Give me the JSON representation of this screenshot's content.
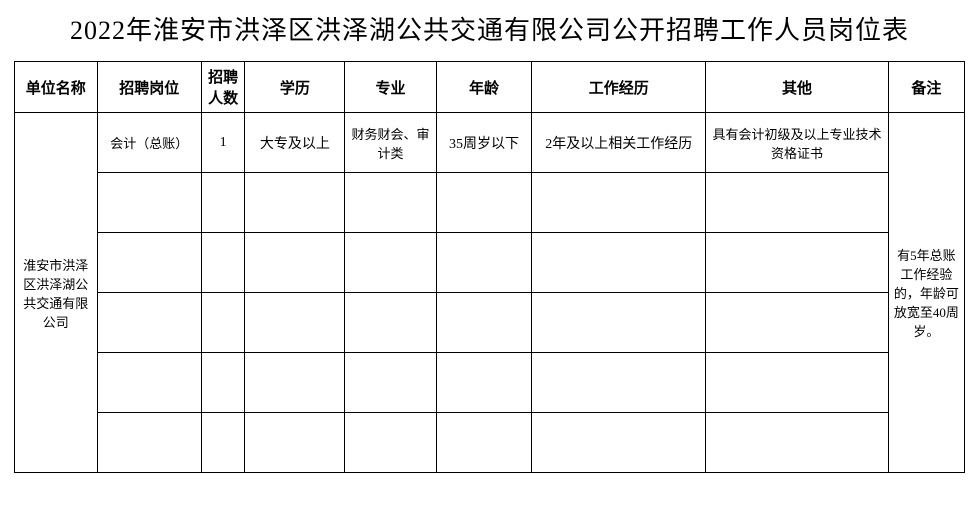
{
  "title": "2022年淮安市洪泽区洪泽湖公共交通有限公司公开招聘工作人员岗位表",
  "table": {
    "type": "table",
    "background_color": "#ffffff",
    "border_color": "#000000",
    "text_color": "#000000",
    "header_fontsize": 15,
    "cell_fontsize": 14,
    "small_fontsize": 13,
    "columns": [
      {
        "key": "unit",
        "label": "单位名称",
        "width": 76
      },
      {
        "key": "position",
        "label": "招聘岗位",
        "width": 96
      },
      {
        "key": "count",
        "label": "招聘人数",
        "width": 40
      },
      {
        "key": "education",
        "label": "学历",
        "width": 92
      },
      {
        "key": "major",
        "label": "专业",
        "width": 84
      },
      {
        "key": "age",
        "label": "年龄",
        "width": 88
      },
      {
        "key": "experience",
        "label": "工作经历",
        "width": 160
      },
      {
        "key": "other",
        "label": "其他",
        "width": 168
      },
      {
        "key": "remark",
        "label": "备注",
        "width": 70
      }
    ],
    "unit_name": "淮安市洪泽区洪泽湖公共交通有限公司",
    "remark_text": "有5年总账工作经验的，年龄可放宽至40周岁。",
    "rows": [
      {
        "position": "会计（总账）",
        "count": "1",
        "education": "大专及以上",
        "major": "财务财会、审计类",
        "age": "35周岁以下",
        "experience": "2年及以上相关工作经历",
        "other": "具有会计初级及以上专业技术资格证书"
      }
    ],
    "empty_row_count": 5,
    "total_body_rows": 6
  }
}
